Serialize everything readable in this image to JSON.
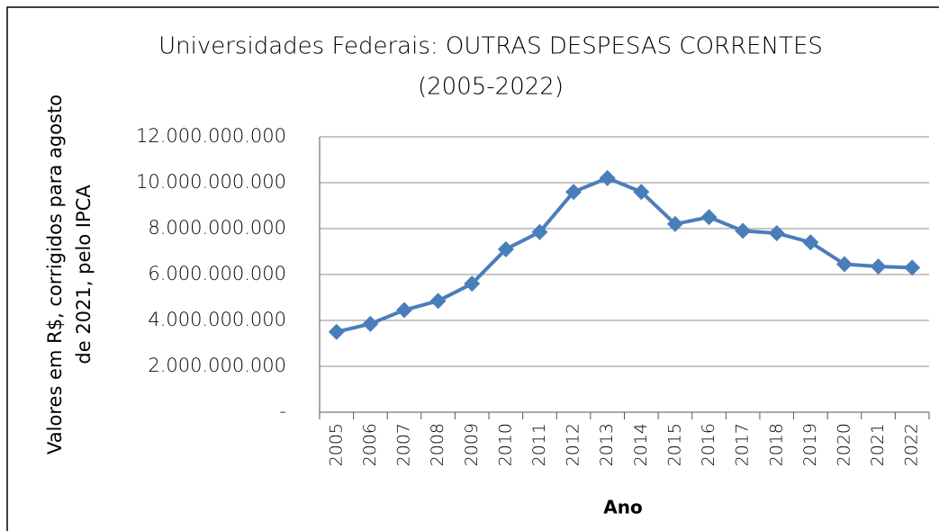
{
  "chart_data": {
    "type": "line",
    "title": [
      "Universidades Federais: OUTRAS DESPESAS CORRENTES",
      "(2005-2022)"
    ],
    "y_label": [
      "Valores em R$, corrigidos para agosto",
      "de 2021, pelo IPCA"
    ],
    "x_label": "Ano",
    "categories": [
      "2005",
      "2006",
      "2007",
      "2008",
      "2009",
      "2010",
      "2011",
      "2012",
      "2013",
      "2014",
      "2015",
      "2016",
      "2017",
      "2018",
      "2019",
      "2020",
      "2021",
      "2022"
    ],
    "series": [
      {
        "name": "Outras despesas correntes",
        "color": "#4a7ebb",
        "values": [
          3500000000,
          3850000000,
          4450000000,
          4850000000,
          5600000000,
          7100000000,
          7850000000,
          9600000000,
          10200000000,
          9600000000,
          8200000000,
          8500000000,
          7900000000,
          7800000000,
          7400000000,
          6450000000,
          6350000000,
          6300000000
        ]
      }
    ],
    "ylim": [
      0,
      12000000000
    ],
    "yticks": [
      {
        "value": 0,
        "label": "-"
      },
      {
        "value": 2000000000,
        "label": "2.000.000.000"
      },
      {
        "value": 4000000000,
        "label": "4.000.000.000"
      },
      {
        "value": 6000000000,
        "label": "6.000.000.000"
      },
      {
        "value": 8000000000,
        "label": "8.000.000.000"
      },
      {
        "value": 10000000000,
        "label": "10.000.000.000"
      },
      {
        "value": 12000000000,
        "label": "12.000.000.000"
      }
    ],
    "grid": true
  }
}
